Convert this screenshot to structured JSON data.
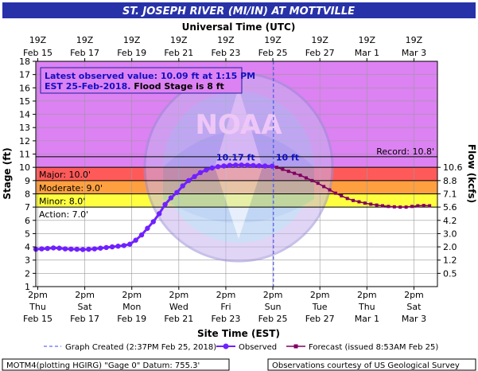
{
  "chart_data": {
    "type": "line",
    "title": "ST. JOSEPH RIVER (MI/IN) AT MOTTVILLE",
    "top_axis_label": "Universal Time (UTC)",
    "xlabel": "Site Time (EST)",
    "ylabel": "Stage (ft)",
    "ylabel_right": "Flow (kcfs)",
    "ylim": [
      1,
      18
    ],
    "xlim": [
      "Feb 15 12:00",
      "Mar 4 14:00"
    ],
    "y_ticks": [
      "1",
      "2",
      "3",
      "4",
      "5",
      "6",
      "7",
      "8",
      "9",
      "10",
      "11",
      "12",
      "13",
      "14",
      "15",
      "16",
      "17",
      "18"
    ],
    "right_ticks": [
      {
        "stage": 10.0,
        "label": "10.6"
      },
      {
        "stage": 9.0,
        "label": "8.8"
      },
      {
        "stage": 8.0,
        "label": "7.1"
      },
      {
        "stage": 7.0,
        "label": "5.6"
      },
      {
        "stage": 6.0,
        "label": "4.2"
      },
      {
        "stage": 5.0,
        "label": "3.0"
      },
      {
        "stage": 4.0,
        "label": "2.0"
      },
      {
        "stage": 3.0,
        "label": "1.2"
      },
      {
        "stage": 2.0,
        "label": "0.5"
      }
    ],
    "top_ticks": [
      {
        "l1": "19Z",
        "l2": "Feb 15"
      },
      {
        "l1": "19Z",
        "l2": "Feb 17"
      },
      {
        "l1": "19Z",
        "l2": "Feb 19"
      },
      {
        "l1": "19Z",
        "l2": "Feb 21"
      },
      {
        "l1": "19Z",
        "l2": "Feb 23"
      },
      {
        "l1": "19Z",
        "l2": "Feb 25"
      },
      {
        "l1": "19Z",
        "l2": "Feb 27"
      },
      {
        "l1": "19Z",
        "l2": "Mar 1"
      },
      {
        "l1": "19Z",
        "l2": "Mar 3"
      }
    ],
    "bottom_ticks": [
      {
        "l1": "2pm",
        "l2": "Thu",
        "l3": "Feb 15"
      },
      {
        "l1": "2pm",
        "l2": "Sat",
        "l3": "Feb 17"
      },
      {
        "l1": "2pm",
        "l2": "Mon",
        "l3": "Feb 19"
      },
      {
        "l1": "2pm",
        "l2": "Wed",
        "l3": "Feb 21"
      },
      {
        "l1": "2pm",
        "l2": "Fri",
        "l3": "Feb 23"
      },
      {
        "l1": "2pm",
        "l2": "Sun",
        "l3": "Feb 25"
      },
      {
        "l1": "2pm",
        "l2": "Tue",
        "l3": "Feb 27"
      },
      {
        "l1": "2pm",
        "l2": "Thu",
        "l3": "Mar 1"
      },
      {
        "l1": "2pm",
        "l2": "Sat",
        "l3": "Mar 3"
      }
    ],
    "thresholds": [
      {
        "label": "Record: 10.8'",
        "stage": 10.8
      },
      {
        "label": "Major: 10.0'",
        "stage": 10.0
      },
      {
        "label": "Moderate: 9.0'",
        "stage": 9.0
      },
      {
        "label": "Minor: 8.0'",
        "stage": 8.0
      },
      {
        "label": "Action: 7.0'",
        "stage": 7.0
      }
    ],
    "band_colors": {
      "above_major": "#dc82f2",
      "major": "#ff5a5a",
      "moderate": "#ffa040",
      "minor": "#ffff40",
      "below": "#ffffff"
    },
    "series": [
      {
        "name": "Observed",
        "color": "#7020ff",
        "points": [
          [
            "Feb 15 12:00",
            3.82
          ],
          [
            "Feb 15 18:00",
            3.85
          ],
          [
            "Feb 16 00:00",
            3.88
          ],
          [
            "Feb 16 06:00",
            3.92
          ],
          [
            "Feb 16 12:00",
            3.9
          ],
          [
            "Feb 16 18:00",
            3.85
          ],
          [
            "Feb 17 00:00",
            3.83
          ],
          [
            "Feb 17 06:00",
            3.82
          ],
          [
            "Feb 17 12:00",
            3.8
          ],
          [
            "Feb 17 18:00",
            3.82
          ],
          [
            "Feb 18 00:00",
            3.85
          ],
          [
            "Feb 18 06:00",
            3.9
          ],
          [
            "Feb 18 12:00",
            3.95
          ],
          [
            "Feb 18 18:00",
            4.0
          ],
          [
            "Feb 19 00:00",
            4.05
          ],
          [
            "Feb 19 06:00",
            4.1
          ],
          [
            "Feb 19 12:00",
            4.2
          ],
          [
            "Feb 19 18:00",
            4.5
          ],
          [
            "Feb 20 00:00",
            4.9
          ],
          [
            "Feb 20 06:00",
            5.4
          ],
          [
            "Feb 20 12:00",
            5.9
          ],
          [
            "Feb 20 18:00",
            6.5
          ],
          [
            "Feb 21 00:00",
            7.2
          ],
          [
            "Feb 21 06:00",
            7.7
          ],
          [
            "Feb 21 12:00",
            8.1
          ],
          [
            "Feb 21 18:00",
            8.6
          ],
          [
            "Feb 22 00:00",
            9.0
          ],
          [
            "Feb 22 06:00",
            9.3
          ],
          [
            "Feb 22 12:00",
            9.6
          ],
          [
            "Feb 22 18:00",
            9.8
          ],
          [
            "Feb 23 00:00",
            9.95
          ],
          [
            "Feb 23 06:00",
            10.05
          ],
          [
            "Feb 23 12:00",
            10.1
          ],
          [
            "Feb 23 18:00",
            10.15
          ],
          [
            "Feb 24 00:00",
            10.17
          ],
          [
            "Feb 24 06:00",
            10.17
          ],
          [
            "Feb 24 12:00",
            10.16
          ],
          [
            "Feb 24 18:00",
            10.14
          ],
          [
            "Feb 25 00:00",
            10.12
          ],
          [
            "Feb 25 06:00",
            10.1
          ],
          [
            "Feb 25 13:15",
            10.09
          ]
        ]
      },
      {
        "name": "Forecast (issued 8:53AM Feb 25)",
        "color": "#800060",
        "points": [
          [
            "Feb 25 13:15",
            10.09
          ],
          [
            "Feb 25 18:00",
            10.0
          ],
          [
            "Feb 26 00:00",
            9.85
          ],
          [
            "Feb 26 06:00",
            9.7
          ],
          [
            "Feb 26 12:00",
            9.55
          ],
          [
            "Feb 26 18:00",
            9.4
          ],
          [
            "Feb 27 00:00",
            9.2
          ],
          [
            "Feb 27 06:00",
            9.0
          ],
          [
            "Feb 27 12:00",
            8.8
          ],
          [
            "Feb 27 18:00",
            8.55
          ],
          [
            "Feb 28 00:00",
            8.3
          ],
          [
            "Feb 28 06:00",
            8.05
          ],
          [
            "Feb 28 12:00",
            7.85
          ],
          [
            "Feb 28 18:00",
            7.65
          ],
          [
            "Mar 1 00:00",
            7.5
          ],
          [
            "Mar 1 06:00",
            7.4
          ],
          [
            "Mar 1 12:00",
            7.3
          ],
          [
            "Mar 1 18:00",
            7.22
          ],
          [
            "Mar 2 00:00",
            7.15
          ],
          [
            "Mar 2 06:00",
            7.1
          ],
          [
            "Mar 2 12:00",
            7.05
          ],
          [
            "Mar 2 18:00",
            7.02
          ],
          [
            "Mar 3 00:00",
            7.0
          ],
          [
            "Mar 3 06:00",
            7.0
          ],
          [
            "Mar 3 12:00",
            7.05
          ],
          [
            "Mar 3 18:00",
            7.1
          ],
          [
            "Mar 4 00:00",
            7.12
          ],
          [
            "Mar 4 06:00",
            7.1
          ]
        ]
      }
    ],
    "graph_created": "Feb 25 14:37",
    "annotations": {
      "crest_label": "10.17 ft",
      "forecast_crest_label": "10 ft",
      "latest_line1": "Latest observed value: 10.09 ft at 1:15 PM",
      "latest_line2_date": "EST 25-Feb-2018.",
      "latest_line2_flood": " Flood Stage is 8 ft"
    },
    "legend": {
      "created": "Graph Created (2:37PM Feb 25, 2018)",
      "observed": "Observed",
      "forecast": "Forecast (issued 8:53AM Feb 25)"
    },
    "footer_left": "MOTM4(plotting HGIRG) \"Gage 0\" Datum: 755.3'",
    "footer_right": "Observations courtesy of US Geological Survey",
    "colors": {
      "title_bar": "#2832a8",
      "plot_border": "#000000"
    }
  }
}
